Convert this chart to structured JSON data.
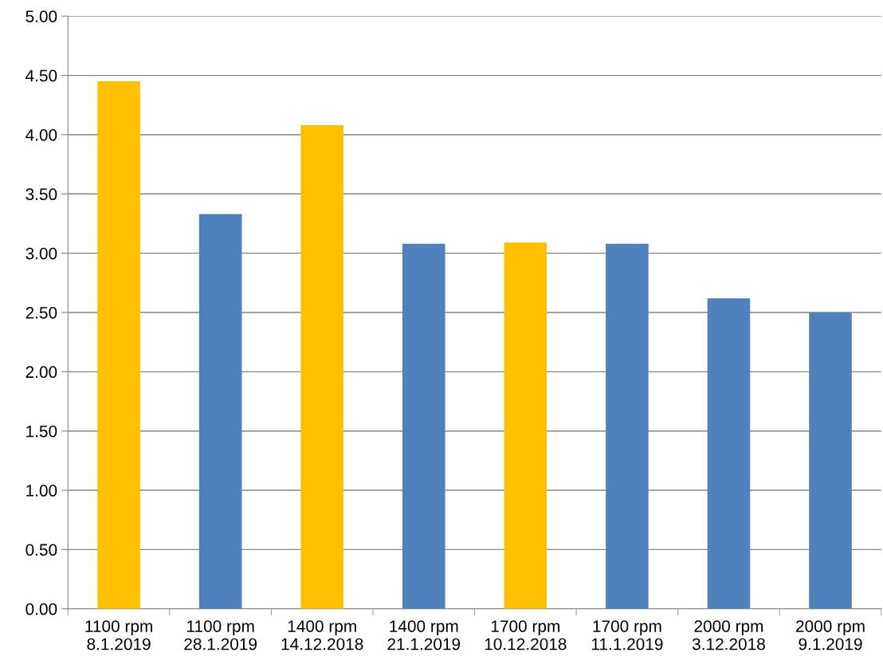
{
  "chart_data": {
    "type": "bar",
    "categories": [
      "1100 rpm\n8.1.2019",
      "1100 rpm\n28.1.2019",
      "1400 rpm\n14.12.2018",
      "1400 rpm\n21.1.2019",
      "1700 rpm\n10.12.2018",
      "1700 rpm\n11.1.2019",
      "2000 rpm\n3.12.2018",
      "2000 rpm\n9.1.2019"
    ],
    "values": [
      4.45,
      3.33,
      4.08,
      3.08,
      3.09,
      3.08,
      2.62,
      2.5
    ],
    "colors": [
      "#ffc000",
      "#4f81bd",
      "#ffc000",
      "#4f81bd",
      "#ffc000",
      "#4f81bd",
      "#4f81bd",
      "#4f81bd"
    ],
    "ylim": [
      0,
      5
    ],
    "yticks": [
      {
        "value": 0,
        "label": "0.00"
      },
      {
        "value": 0.5,
        "label": "0.50"
      },
      {
        "value": 1,
        "label": "1.00"
      },
      {
        "value": 1.5,
        "label": "1.50"
      },
      {
        "value": 2,
        "label": "2.00"
      },
      {
        "value": 2.5,
        "label": "2.50"
      },
      {
        "value": 3,
        "label": "3.00"
      },
      {
        "value": 3.5,
        "label": "3.50"
      },
      {
        "value": 4,
        "label": "4.00"
      },
      {
        "value": 4.5,
        "label": "4.50"
      },
      {
        "value": 5,
        "label": "5.00"
      }
    ],
    "grid": "y",
    "legend": false
  }
}
